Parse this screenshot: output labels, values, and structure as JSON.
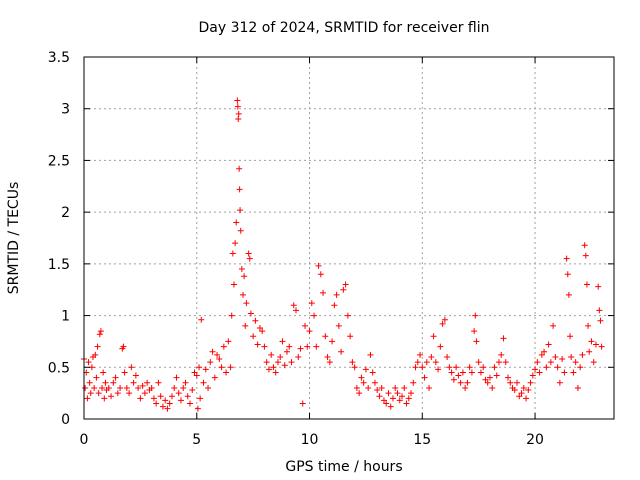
{
  "chart_data": {
    "type": "scatter",
    "title": "Day 312 of 2024, SRMTID for receiver flin",
    "xlabel": "GPS time / hours",
    "ylabel": "SRMTID / TECUs",
    "xlim": [
      0,
      23.5
    ],
    "ylim": [
      0,
      3.5
    ],
    "x_ticks": [
      0,
      5,
      10,
      15,
      20
    ],
    "x_tick_labels": [
      "0",
      "5",
      "10",
      "15",
      "20"
    ],
    "y_ticks": [
      0,
      0.5,
      1,
      1.5,
      2,
      2.5,
      3,
      3.5
    ],
    "y_tick_labels": [
      "0",
      "0.5",
      "1",
      "1.5",
      "2",
      "2.5",
      "3",
      "3.5"
    ],
    "grid": true,
    "marker": "+",
    "color": "#ff0000",
    "series": [
      {
        "name": "SRMTID",
        "points": [
          [
            0.0,
            0.58
          ],
          [
            0.05,
            0.3
          ],
          [
            0.1,
            0.45
          ],
          [
            0.15,
            0.2
          ],
          [
            0.2,
            0.55
          ],
          [
            0.25,
            0.35
          ],
          [
            0.3,
            0.25
          ],
          [
            0.35,
            0.5
          ],
          [
            0.4,
            0.6
          ],
          [
            0.45,
            0.3
          ],
          [
            0.5,
            0.62
          ],
          [
            0.55,
            0.4
          ],
          [
            0.6,
            0.7
          ],
          [
            0.65,
            0.25
          ],
          [
            0.7,
            0.82
          ],
          [
            0.75,
            0.85
          ],
          [
            0.8,
            0.3
          ],
          [
            0.85,
            0.45
          ],
          [
            0.9,
            0.2
          ],
          [
            0.95,
            0.35
          ],
          [
            1.0,
            0.28
          ],
          [
            1.1,
            0.3
          ],
          [
            1.2,
            0.22
          ],
          [
            1.3,
            0.35
          ],
          [
            1.4,
            0.4
          ],
          [
            1.5,
            0.25
          ],
          [
            1.6,
            0.3
          ],
          [
            1.7,
            0.68
          ],
          [
            1.75,
            0.7
          ],
          [
            1.8,
            0.45
          ],
          [
            1.9,
            0.3
          ],
          [
            2.0,
            0.25
          ],
          [
            2.1,
            0.5
          ],
          [
            2.2,
            0.35
          ],
          [
            2.3,
            0.42
          ],
          [
            2.4,
            0.3
          ],
          [
            2.5,
            0.2
          ],
          [
            2.6,
            0.32
          ],
          [
            2.7,
            0.25
          ],
          [
            2.8,
            0.35
          ],
          [
            2.9,
            0.28
          ],
          [
            3.0,
            0.3
          ],
          [
            3.1,
            0.2
          ],
          [
            3.2,
            0.15
          ],
          [
            3.3,
            0.35
          ],
          [
            3.4,
            0.22
          ],
          [
            3.5,
            0.12
          ],
          [
            3.6,
            0.18
          ],
          [
            3.7,
            0.1
          ],
          [
            3.8,
            0.15
          ],
          [
            3.9,
            0.22
          ],
          [
            4.0,
            0.3
          ],
          [
            4.1,
            0.4
          ],
          [
            4.2,
            0.25
          ],
          [
            4.3,
            0.18
          ],
          [
            4.4,
            0.3
          ],
          [
            4.5,
            0.35
          ],
          [
            4.6,
            0.22
          ],
          [
            4.7,
            0.15
          ],
          [
            4.8,
            0.28
          ],
          [
            4.9,
            0.45
          ],
          [
            5.0,
            0.42
          ],
          [
            5.05,
            0.1
          ],
          [
            5.1,
            0.5
          ],
          [
            5.15,
            0.2
          ],
          [
            5.2,
            0.96
          ],
          [
            5.3,
            0.35
          ],
          [
            5.4,
            0.48
          ],
          [
            5.5,
            0.3
          ],
          [
            5.6,
            0.55
          ],
          [
            5.7,
            0.65
          ],
          [
            5.8,
            0.4
          ],
          [
            5.9,
            0.62
          ],
          [
            6.0,
            0.58
          ],
          [
            6.1,
            0.5
          ],
          [
            6.2,
            0.7
          ],
          [
            6.3,
            0.45
          ],
          [
            6.4,
            0.75
          ],
          [
            6.5,
            0.5
          ],
          [
            6.55,
            1.0
          ],
          [
            6.6,
            1.6
          ],
          [
            6.65,
            1.3
          ],
          [
            6.7,
            1.7
          ],
          [
            6.75,
            1.9
          ],
          [
            6.8,
            3.08
          ],
          [
            6.82,
            3.02
          ],
          [
            6.84,
            2.9
          ],
          [
            6.86,
            2.95
          ],
          [
            6.88,
            2.42
          ],
          [
            6.9,
            2.22
          ],
          [
            6.92,
            2.02
          ],
          [
            6.95,
            1.82
          ],
          [
            7.0,
            1.45
          ],
          [
            7.05,
            1.2
          ],
          [
            7.1,
            1.38
          ],
          [
            7.15,
            0.9
          ],
          [
            7.2,
            1.12
          ],
          [
            7.3,
            1.6
          ],
          [
            7.35,
            1.55
          ],
          [
            7.4,
            1.02
          ],
          [
            7.5,
            0.8
          ],
          [
            7.6,
            0.95
          ],
          [
            7.7,
            0.72
          ],
          [
            7.8,
            0.88
          ],
          [
            7.9,
            0.85
          ],
          [
            8.0,
            0.7
          ],
          [
            8.1,
            0.55
          ],
          [
            8.2,
            0.48
          ],
          [
            8.3,
            0.62
          ],
          [
            8.4,
            0.5
          ],
          [
            8.5,
            0.45
          ],
          [
            8.6,
            0.55
          ],
          [
            8.7,
            0.6
          ],
          [
            8.8,
            0.75
          ],
          [
            8.9,
            0.52
          ],
          [
            9.0,
            0.65
          ],
          [
            9.1,
            0.7
          ],
          [
            9.2,
            0.55
          ],
          [
            9.3,
            1.1
          ],
          [
            9.4,
            1.05
          ],
          [
            9.5,
            0.6
          ],
          [
            9.6,
            0.68
          ],
          [
            9.7,
            0.15
          ],
          [
            9.8,
            0.9
          ],
          [
            9.9,
            0.7
          ],
          [
            10.0,
            0.85
          ],
          [
            10.1,
            1.12
          ],
          [
            10.2,
            1.0
          ],
          [
            10.3,
            0.7
          ],
          [
            10.4,
            1.48
          ],
          [
            10.5,
            1.4
          ],
          [
            10.6,
            1.22
          ],
          [
            10.7,
            0.8
          ],
          [
            10.8,
            0.6
          ],
          [
            10.9,
            0.55
          ],
          [
            11.0,
            0.75
          ],
          [
            11.1,
            1.1
          ],
          [
            11.2,
            1.2
          ],
          [
            11.3,
            0.9
          ],
          [
            11.4,
            0.65
          ],
          [
            11.5,
            1.25
          ],
          [
            11.6,
            1.3
          ],
          [
            11.7,
            1.0
          ],
          [
            11.8,
            0.8
          ],
          [
            11.9,
            0.55
          ],
          [
            12.0,
            0.5
          ],
          [
            12.1,
            0.3
          ],
          [
            12.2,
            0.25
          ],
          [
            12.3,
            0.4
          ],
          [
            12.4,
            0.35
          ],
          [
            12.5,
            0.48
          ],
          [
            12.6,
            0.3
          ],
          [
            12.7,
            0.62
          ],
          [
            12.8,
            0.45
          ],
          [
            12.9,
            0.35
          ],
          [
            13.0,
            0.28
          ],
          [
            13.1,
            0.22
          ],
          [
            13.2,
            0.3
          ],
          [
            13.3,
            0.18
          ],
          [
            13.4,
            0.15
          ],
          [
            13.5,
            0.25
          ],
          [
            13.6,
            0.12
          ],
          [
            13.7,
            0.2
          ],
          [
            13.8,
            0.3
          ],
          [
            13.9,
            0.25
          ],
          [
            14.0,
            0.18
          ],
          [
            14.1,
            0.22
          ],
          [
            14.2,
            0.3
          ],
          [
            14.3,
            0.15
          ],
          [
            14.4,
            0.2
          ],
          [
            14.5,
            0.25
          ],
          [
            14.6,
            0.35
          ],
          [
            14.7,
            0.5
          ],
          [
            14.8,
            0.55
          ],
          [
            14.9,
            0.62
          ],
          [
            15.0,
            0.5
          ],
          [
            15.1,
            0.4
          ],
          [
            15.2,
            0.55
          ],
          [
            15.3,
            0.3
          ],
          [
            15.4,
            0.6
          ],
          [
            15.5,
            0.8
          ],
          [
            15.6,
            0.55
          ],
          [
            15.7,
            0.48
          ],
          [
            15.8,
            0.7
          ],
          [
            15.9,
            0.92
          ],
          [
            16.0,
            0.96
          ],
          [
            16.1,
            0.6
          ],
          [
            16.2,
            0.5
          ],
          [
            16.3,
            0.45
          ],
          [
            16.4,
            0.38
          ],
          [
            16.5,
            0.5
          ],
          [
            16.6,
            0.42
          ],
          [
            16.7,
            0.35
          ],
          [
            16.8,
            0.45
          ],
          [
            16.9,
            0.3
          ],
          [
            17.0,
            0.35
          ],
          [
            17.1,
            0.5
          ],
          [
            17.2,
            0.45
          ],
          [
            17.3,
            0.85
          ],
          [
            17.35,
            1.0
          ],
          [
            17.4,
            0.75
          ],
          [
            17.5,
            0.55
          ],
          [
            17.6,
            0.45
          ],
          [
            17.7,
            0.5
          ],
          [
            17.8,
            0.38
          ],
          [
            17.9,
            0.35
          ],
          [
            18.0,
            0.4
          ],
          [
            18.1,
            0.3
          ],
          [
            18.2,
            0.5
          ],
          [
            18.3,
            0.42
          ],
          [
            18.4,
            0.55
          ],
          [
            18.5,
            0.62
          ],
          [
            18.6,
            0.78
          ],
          [
            18.7,
            0.55
          ],
          [
            18.8,
            0.4
          ],
          [
            18.9,
            0.35
          ],
          [
            19.0,
            0.3
          ],
          [
            19.1,
            0.28
          ],
          [
            19.2,
            0.35
          ],
          [
            19.3,
            0.22
          ],
          [
            19.4,
            0.25
          ],
          [
            19.5,
            0.3
          ],
          [
            19.6,
            0.2
          ],
          [
            19.7,
            0.28
          ],
          [
            19.8,
            0.35
          ],
          [
            19.9,
            0.42
          ],
          [
            20.0,
            0.48
          ],
          [
            20.1,
            0.55
          ],
          [
            20.2,
            0.45
          ],
          [
            20.3,
            0.62
          ],
          [
            20.4,
            0.65
          ],
          [
            20.5,
            0.5
          ],
          [
            20.6,
            0.72
          ],
          [
            20.7,
            0.55
          ],
          [
            20.8,
            0.9
          ],
          [
            20.9,
            0.6
          ],
          [
            21.0,
            0.5
          ],
          [
            21.1,
            0.35
          ],
          [
            21.2,
            0.58
          ],
          [
            21.3,
            0.45
          ],
          [
            21.4,
            1.55
          ],
          [
            21.45,
            1.4
          ],
          [
            21.5,
            1.2
          ],
          [
            21.55,
            0.8
          ],
          [
            21.6,
            0.6
          ],
          [
            21.7,
            0.45
          ],
          [
            21.8,
            0.55
          ],
          [
            21.9,
            0.3
          ],
          [
            22.0,
            0.5
          ],
          [
            22.1,
            0.62
          ],
          [
            22.2,
            1.68
          ],
          [
            22.25,
            1.58
          ],
          [
            22.3,
            1.3
          ],
          [
            22.35,
            0.9
          ],
          [
            22.4,
            0.65
          ],
          [
            22.5,
            0.75
          ],
          [
            22.6,
            0.55
          ],
          [
            22.7,
            0.72
          ],
          [
            22.8,
            1.28
          ],
          [
            22.85,
            1.05
          ],
          [
            22.9,
            0.95
          ],
          [
            22.95,
            0.7
          ]
        ]
      }
    ]
  }
}
